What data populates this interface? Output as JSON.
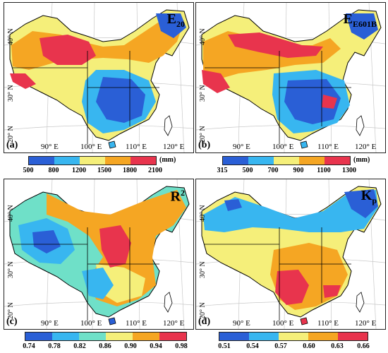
{
  "panels": [
    {
      "id": "a",
      "label": "(a)",
      "title_main": "E",
      "title_sub": "20",
      "title_sup": "",
      "lon_labels": [
        "90° E",
        "100° E",
        "110° E",
        "120° E"
      ],
      "lat_labels": [
        "20° N",
        "30° N",
        "40° N"
      ],
      "colors": [
        "#2a5fd6",
        "#38b6f0",
        "#f5ef7a",
        "#f5a623",
        "#e8344d"
      ],
      "legend_ticks": [
        "500",
        "800",
        "1200",
        "1500",
        "1800",
        "2100"
      ],
      "unit": "(mm)"
    },
    {
      "id": "b",
      "label": "(b)",
      "title_main": "E",
      "title_sub": "E601B",
      "title_sup": "",
      "lon_labels": [
        "90° E",
        "100° E",
        "110° E",
        "120° E"
      ],
      "lat_labels": [
        "20° N",
        "30° N",
        "40° N"
      ],
      "colors": [
        "#2a5fd6",
        "#38b6f0",
        "#f5ef7a",
        "#f5a623",
        "#e8344d"
      ],
      "legend_ticks": [
        "315",
        "500",
        "700",
        "900",
        "1100",
        "1300"
      ],
      "unit": "(mm)"
    },
    {
      "id": "c",
      "label": "(c)",
      "title_main": "R",
      "title_sub": "",
      "title_sup": "2",
      "lon_labels": [
        "90° E",
        "100° E",
        "110° E",
        "120° E"
      ],
      "lat_labels": [
        "20° N",
        "30° N",
        "40° N"
      ],
      "colors": [
        "#2a5fd6",
        "#38b6f0",
        "#6fe0c8",
        "#f5ef7a",
        "#f5a623",
        "#e8344d"
      ],
      "legend_ticks": [
        "0.74",
        "0.78",
        "0.82",
        "0.86",
        "0.90",
        "0.94",
        "0.98"
      ],
      "unit": ""
    },
    {
      "id": "d",
      "label": "(d)",
      "title_main": "K",
      "title_sub": "p",
      "title_sup": "",
      "lon_labels": [
        "90° E",
        "100° E",
        "110° E",
        "120° E"
      ],
      "lat_labels": [
        "20° N",
        "30° N",
        "40° N"
      ],
      "colors": [
        "#2a5fd6",
        "#38b6f0",
        "#f5ef7a",
        "#f5a623",
        "#e8344d"
      ],
      "legend_ticks": [
        "0.51",
        "0.54",
        "0.57",
        "0.60",
        "0.63",
        "0.66"
      ],
      "unit": ""
    }
  ]
}
